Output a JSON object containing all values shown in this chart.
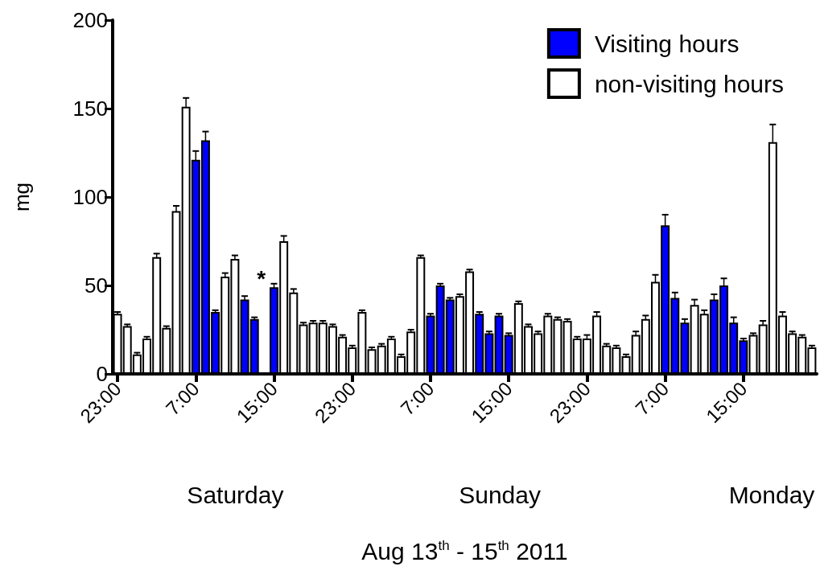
{
  "chart_data": {
    "type": "bar",
    "ylabel": "mg",
    "xlabel": "Aug 13$^{th}$ - 15$^{th}$ 2011",
    "categories": [
      "23:00",
      null,
      null,
      null,
      null,
      null,
      null,
      null,
      "7:00",
      null,
      null,
      null,
      null,
      null,
      null,
      null,
      "15:00",
      null,
      null,
      null,
      null,
      null,
      null,
      null,
      "23:00",
      null,
      null,
      null,
      null,
      null,
      null,
      null,
      "7:00",
      null,
      null,
      null,
      null,
      null,
      null,
      null,
      "15:00",
      null,
      null,
      null,
      null,
      null,
      null,
      null,
      "23:00",
      null,
      null,
      null,
      null,
      null,
      null,
      null,
      "7:00",
      null,
      null,
      null,
      null,
      null,
      null,
      null,
      "15:00",
      null,
      null,
      null,
      null,
      null,
      null,
      null
    ],
    "series": [
      {
        "name": "Visiting hours",
        "color": "#0000ff",
        "values": [
          null,
          null,
          null,
          null,
          null,
          null,
          null,
          null,
          121,
          132,
          35,
          null,
          null,
          42,
          31,
          null,
          49,
          null,
          null,
          null,
          null,
          null,
          null,
          null,
          null,
          null,
          null,
          null,
          null,
          null,
          null,
          null,
          33,
          50,
          42,
          null,
          null,
          34,
          23,
          33,
          22,
          null,
          null,
          null,
          null,
          null,
          null,
          null,
          null,
          null,
          null,
          null,
          null,
          null,
          null,
          null,
          84,
          43,
          29,
          null,
          null,
          42,
          50,
          29,
          19,
          null,
          null,
          null,
          null,
          null,
          null,
          null
        ],
        "errors": [
          null,
          null,
          null,
          null,
          null,
          null,
          null,
          null,
          5,
          5,
          1,
          null,
          null,
          2,
          1,
          null,
          2,
          null,
          null,
          null,
          null,
          null,
          null,
          null,
          null,
          null,
          null,
          null,
          null,
          null,
          null,
          null,
          1,
          1,
          1,
          null,
          null,
          1,
          1,
          1,
          1,
          null,
          null,
          null,
          null,
          null,
          null,
          null,
          null,
          null,
          null,
          null,
          null,
          null,
          null,
          null,
          6,
          3,
          2,
          null,
          null,
          3,
          4,
          3,
          1,
          null,
          null,
          null,
          null,
          null,
          null,
          null
        ]
      },
      {
        "name": "non-visiting hours",
        "color": "#ffffff",
        "values": [
          34,
          27,
          11,
          20,
          66,
          26,
          92,
          151,
          null,
          null,
          null,
          55,
          65,
          null,
          null,
          null,
          null,
          75,
          46,
          28,
          29,
          29,
          27,
          21,
          15,
          35,
          14,
          16,
          20,
          10,
          24,
          66,
          null,
          null,
          null,
          44,
          58,
          null,
          null,
          null,
          null,
          40,
          27,
          23,
          33,
          31,
          30,
          20,
          20,
          33,
          16,
          15,
          10,
          22,
          31,
          52,
          null,
          null,
          null,
          39,
          34,
          null,
          null,
          null,
          null,
          22,
          28,
          131,
          33,
          23,
          21,
          15
        ],
        "errors": [
          1,
          1,
          1,
          1,
          2,
          1,
          3,
          5,
          null,
          null,
          null,
          2,
          2,
          null,
          null,
          null,
          null,
          3,
          2,
          1,
          1,
          1,
          1,
          1,
          1,
          1,
          1,
          1,
          1,
          1,
          1,
          1,
          null,
          null,
          null,
          1,
          1,
          null,
          null,
          null,
          null,
          1,
          1,
          1,
          1,
          1,
          1,
          1,
          2,
          2,
          1,
          1,
          1,
          2,
          2,
          4,
          null,
          null,
          null,
          3,
          2,
          null,
          null,
          null,
          null,
          1,
          2,
          10,
          2,
          1,
          1,
          1
        ]
      }
    ],
    "ylim": [
      0,
      200
    ],
    "yticks": [
      0,
      50,
      100,
      150,
      200
    ],
    "grid": false,
    "legend": "top right",
    "annotations": [
      "Saturday",
      "Sunday",
      "Monday",
      "*"
    ]
  }
}
